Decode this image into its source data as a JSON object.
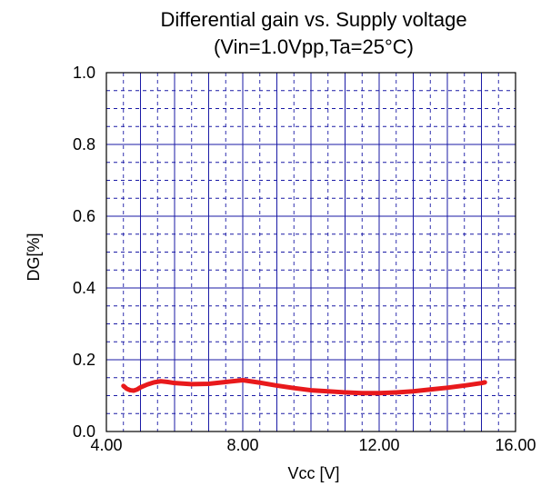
{
  "chart_data": {
    "type": "line",
    "title": "Differential gain vs. Supply voltage",
    "subtitle": "(Vin=1.0Vpp,Ta=25°C)",
    "xlabel": "Vcc [V]",
    "ylabel": "DG[%]",
    "xlim": [
      4,
      16
    ],
    "ylim": [
      0,
      1
    ],
    "x_ticks": [
      4,
      8,
      12,
      16
    ],
    "x_tick_labels": [
      "4.00",
      "8.00",
      "12.00",
      "16.00"
    ],
    "y_ticks": [
      0,
      0.2,
      0.4,
      0.6,
      0.8,
      1.0
    ],
    "y_tick_labels": [
      "0.0",
      "0.2",
      "0.4",
      "0.6",
      "0.8",
      "1.0"
    ],
    "x_minor_step": 0.5,
    "y_minor_step": 0.05,
    "grid": true,
    "legend": "none",
    "colors": {
      "frame": "#000000",
      "grid": "#1a1aa6",
      "series": "#e8191c"
    },
    "series": [
      {
        "x": [
          4.5,
          4.6,
          4.7,
          4.8,
          4.9,
          5.0,
          5.2,
          5.4,
          5.6,
          5.8,
          6.0,
          6.5,
          7.0,
          7.5,
          8.0,
          8.5,
          9.0,
          9.5,
          10.0,
          10.5,
          11.0,
          11.5,
          12.0,
          12.5,
          13.0,
          13.5,
          14.0,
          14.5,
          15.0,
          15.1
        ],
        "y": [
          0.127,
          0.119,
          0.115,
          0.114,
          0.117,
          0.123,
          0.131,
          0.137,
          0.14,
          0.138,
          0.135,
          0.132,
          0.133,
          0.138,
          0.143,
          0.136,
          0.128,
          0.121,
          0.115,
          0.112,
          0.109,
          0.107,
          0.107,
          0.109,
          0.112,
          0.117,
          0.122,
          0.128,
          0.135,
          0.137
        ]
      }
    ]
  }
}
